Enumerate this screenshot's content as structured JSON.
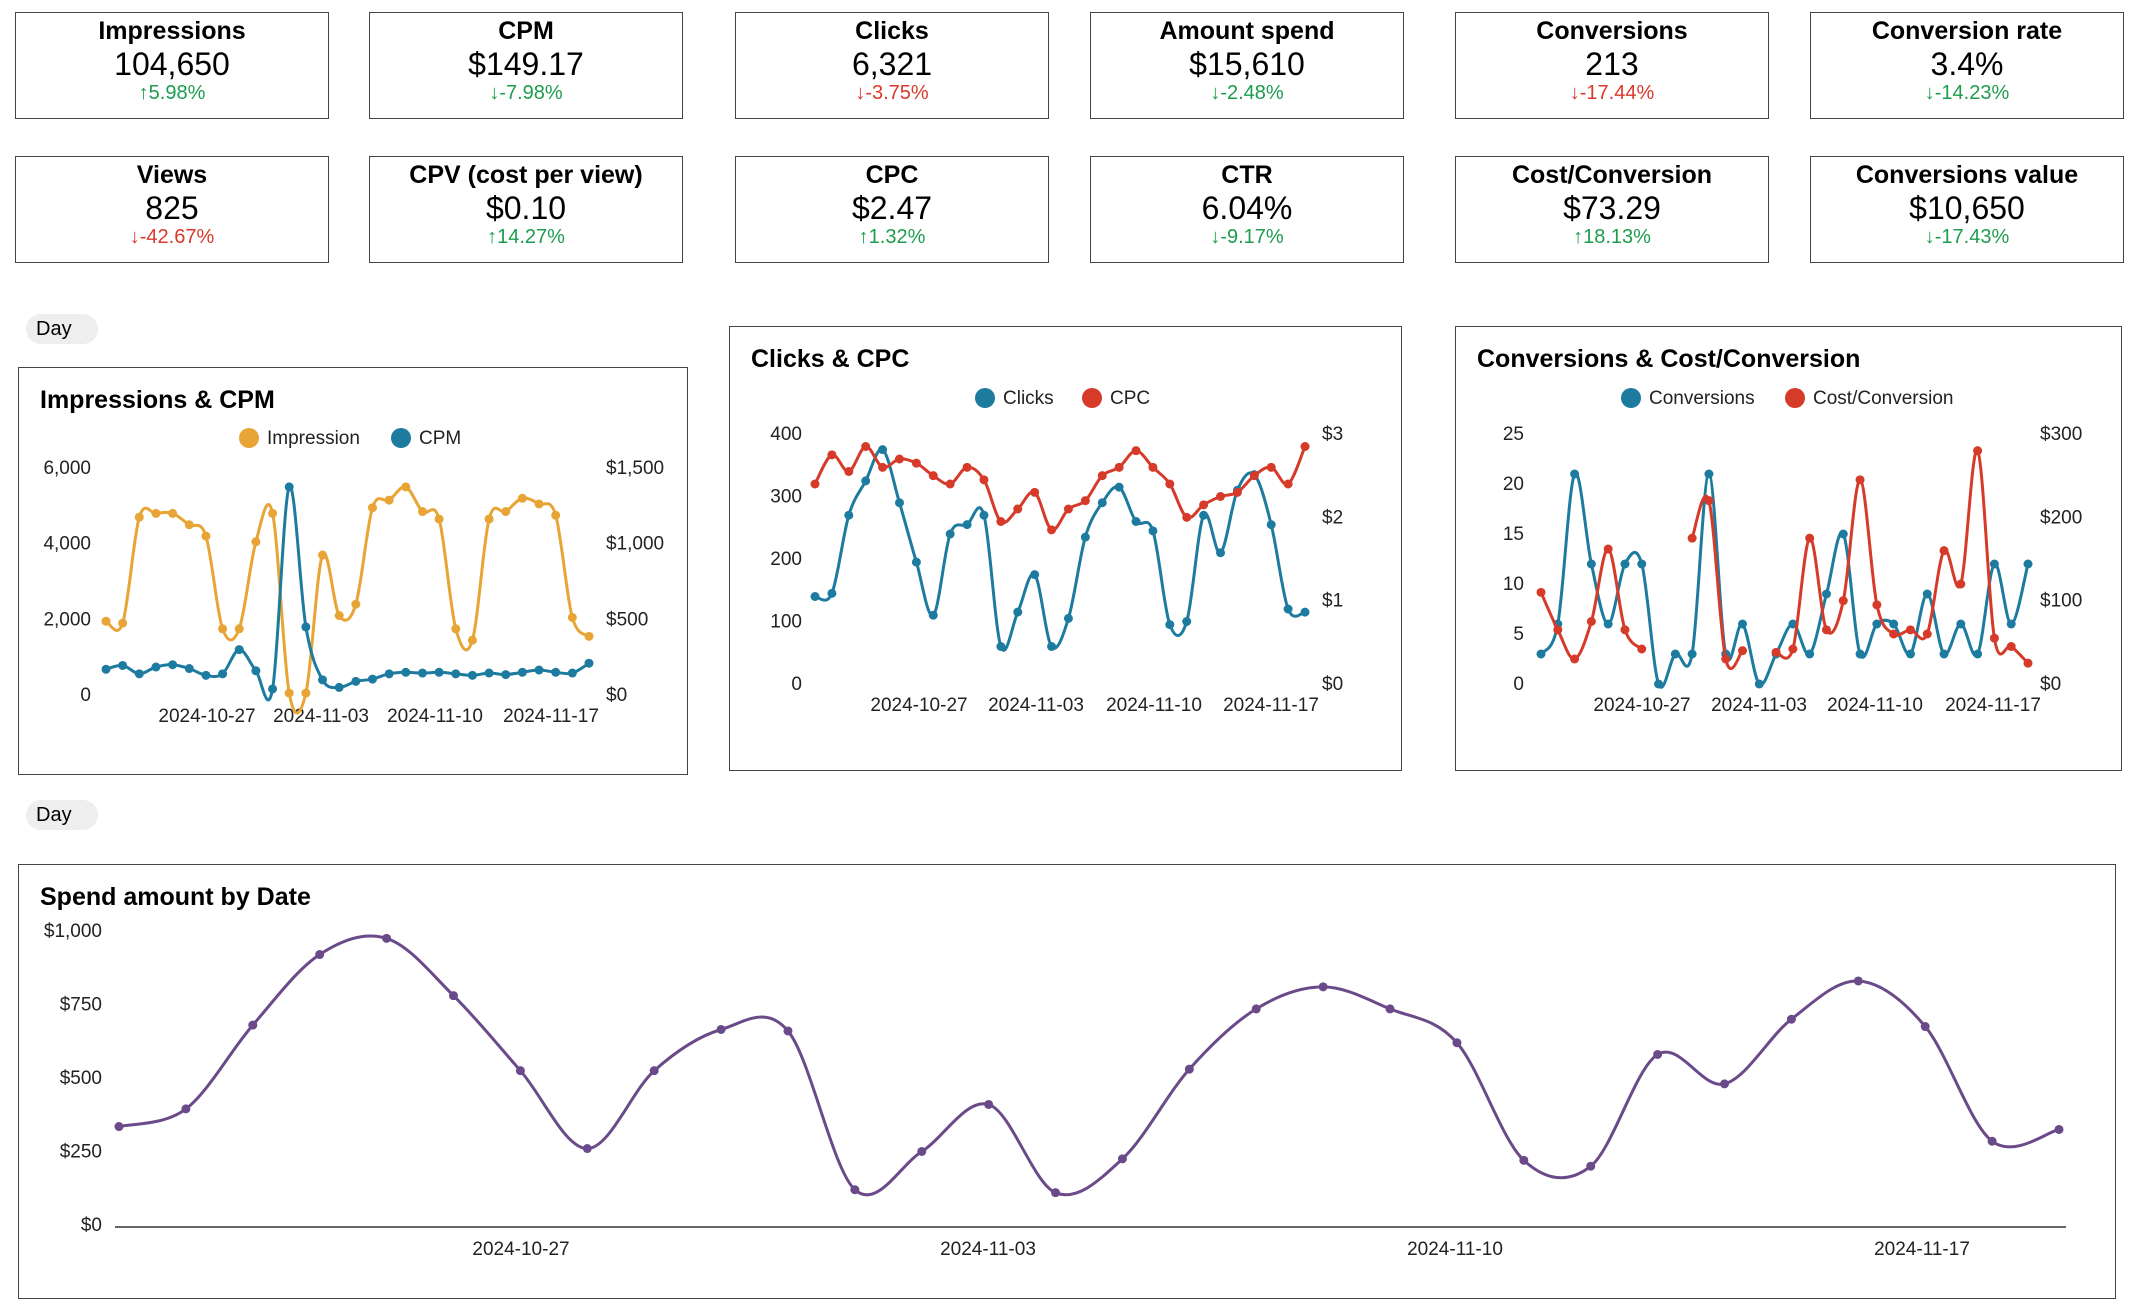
{
  "kpis": [
    {
      "title": "Impressions",
      "value": "104,650",
      "delta": "5.98%",
      "dir": "up",
      "color": "green"
    },
    {
      "title": "CPM",
      "value": "$149.17",
      "delta": "-7.98%",
      "dir": "down",
      "color": "green"
    },
    {
      "title": "Clicks",
      "value": "6,321",
      "delta": "-3.75%",
      "dir": "down",
      "color": "red"
    },
    {
      "title": "Amount spend",
      "value": "$15,610",
      "delta": "-2.48%",
      "dir": "down",
      "color": "green"
    },
    {
      "title": "Conversions",
      "value": "213",
      "delta": "-17.44%",
      "dir": "down",
      "color": "red"
    },
    {
      "title": "Conversion rate",
      "value": "3.4%",
      "delta": "-14.23%",
      "dir": "down",
      "color": "green"
    },
    {
      "title": "Views",
      "value": "825",
      "delta": "-42.67%",
      "dir": "down",
      "color": "red"
    },
    {
      "title": "CPV (cost per view)",
      "value": "$0.10",
      "delta": "14.27%",
      "dir": "up",
      "color": "green"
    },
    {
      "title": "CPC",
      "value": "$2.47",
      "delta": "1.32%",
      "dir": "up",
      "color": "green"
    },
    {
      "title": "CTR",
      "value": "6.04%",
      "delta": "-9.17%",
      "dir": "down",
      "color": "green"
    },
    {
      "title": "Cost/Conversion",
      "value": "$73.29",
      "delta": "18.13%",
      "dir": "up",
      "color": "green"
    },
    {
      "title": "Conversions value",
      "value": "$10,650",
      "delta": "-17.43%",
      "dir": "down",
      "color": "green"
    }
  ],
  "controls": {
    "day_label_1": "Day",
    "day_label_2": "Day"
  },
  "colors": {
    "impression": "#e8a535",
    "cpm": "#1e7ba0",
    "clicks": "#1e7ba0",
    "cpc": "#d63b2a",
    "conversions": "#1e7ba0",
    "cost_conv": "#d63b2a",
    "spend": "#6b4a8a",
    "up": "#1e9c4e",
    "down": "#d93a2b"
  },
  "chart_data": [
    {
      "type": "line",
      "title": "Impressions & CPM",
      "x_ticks": [
        "2024-10-27",
        "2024-11-03",
        "2024-11-10",
        "2024-11-17"
      ],
      "y_left_ticks": [
        "0",
        "2,000",
        "4,000",
        "6,000"
      ],
      "y_right_ticks": [
        "$0",
        "$500",
        "$1,000",
        "$1,500"
      ],
      "y_left_range": [
        0,
        6000
      ],
      "y_right_range": [
        0,
        1500
      ],
      "series": [
        {
          "name": "Impression",
          "axis": "left",
          "values": [
            1950,
            1900,
            4700,
            4800,
            4800,
            4500,
            4200,
            1750,
            1750,
            4050,
            4800,
            50,
            50,
            3700,
            2100,
            2400,
            4950,
            5150,
            5500,
            4850,
            4650,
            1750,
            1450,
            4650,
            4850,
            5200,
            5050,
            4750,
            2050,
            1550
          ]
        },
        {
          "name": "CPM",
          "axis": "right",
          "values": [
            170,
            195,
            140,
            185,
            200,
            175,
            130,
            140,
            300,
            160,
            40,
            1375,
            450,
            100,
            50,
            90,
            105,
            140,
            150,
            145,
            150,
            140,
            130,
            145,
            135,
            150,
            165,
            150,
            145,
            210
          ]
        }
      ]
    },
    {
      "type": "line",
      "title": "Clicks & CPC",
      "x_ticks": [
        "2024-10-27",
        "2024-11-03",
        "2024-11-10",
        "2024-11-17"
      ],
      "y_left_ticks": [
        "0",
        "100",
        "200",
        "300",
        "400"
      ],
      "y_right_ticks": [
        "$0",
        "$1",
        "$2",
        "$3"
      ],
      "y_left_range": [
        0,
        400
      ],
      "y_right_range": [
        0,
        3
      ],
      "series": [
        {
          "name": "Clicks",
          "axis": "left",
          "values": [
            140,
            145,
            270,
            325,
            375,
            290,
            195,
            110,
            240,
            255,
            270,
            60,
            115,
            175,
            60,
            105,
            235,
            290,
            315,
            260,
            245,
            95,
            100,
            270,
            210,
            310,
            335,
            255,
            120,
            115
          ]
        },
        {
          "name": "CPC",
          "axis": "right",
          "values": [
            2.4,
            2.75,
            2.55,
            2.85,
            2.6,
            2.7,
            2.65,
            2.5,
            2.4,
            2.6,
            2.45,
            1.95,
            2.1,
            2.3,
            1.85,
            2.1,
            2.2,
            2.5,
            2.6,
            2.8,
            2.6,
            2.4,
            2.0,
            2.15,
            2.25,
            2.3,
            2.5,
            2.6,
            2.4,
            2.85
          ]
        }
      ]
    },
    {
      "type": "line",
      "title": "Conversions & Cost/Conversion",
      "x_ticks": [
        "2024-10-27",
        "2024-11-03",
        "2024-11-10",
        "2024-11-17"
      ],
      "y_left_ticks": [
        "0",
        "5",
        "10",
        "15",
        "20",
        "25"
      ],
      "y_right_ticks": [
        "$0",
        "$100",
        "$200",
        "$300"
      ],
      "y_left_range": [
        0,
        25
      ],
      "y_right_range": [
        0,
        300
      ],
      "series": [
        {
          "name": "Conversions",
          "axis": "left",
          "values": [
            3,
            6,
            21,
            12,
            6,
            12,
            12,
            0,
            3,
            3,
            21,
            3,
            6,
            0,
            3,
            6,
            3,
            9,
            15,
            3,
            6,
            6,
            3,
            9,
            3,
            6,
            3,
            12,
            6,
            12
          ]
        },
        {
          "name": "Cost/Conversion",
          "axis": "right",
          "values": [
            110,
            65,
            30,
            75,
            162,
            65,
            42,
            null,
            null,
            175,
            220,
            30,
            40,
            null,
            38,
            42,
            175,
            65,
            100,
            245,
            95,
            60,
            65,
            60,
            160,
            120,
            280,
            55,
            45,
            25
          ]
        }
      ]
    },
    {
      "type": "line",
      "title": "Spend amount by Date",
      "x_ticks": [
        "2024-10-27",
        "2024-11-03",
        "2024-11-10",
        "2024-11-17"
      ],
      "y_ticks": [
        "$0",
        "$250",
        "$500",
        "$750",
        "$1,000"
      ],
      "y_range": [
        0,
        1000
      ],
      "series": [
        {
          "name": "Spend",
          "values": [
            335,
            395,
            680,
            920,
            975,
            780,
            525,
            260,
            525,
            665,
            660,
            120,
            250,
            410,
            110,
            225,
            530,
            735,
            810,
            735,
            620,
            220,
            200,
            580,
            480,
            700,
            830,
            675,
            285,
            325
          ]
        }
      ]
    }
  ]
}
